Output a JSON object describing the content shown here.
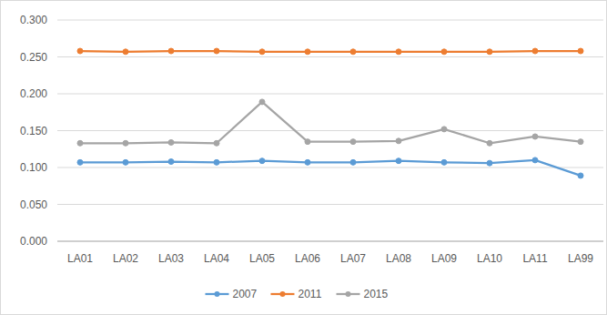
{
  "chart_data": {
    "type": "line",
    "categories": [
      "LA01",
      "LA02",
      "LA03",
      "LA04",
      "LA05",
      "LA06",
      "LA07",
      "LA08",
      "LA09",
      "LA10",
      "LA11",
      "LA99"
    ],
    "series": [
      {
        "name": "2007",
        "color": "#5b9bd5",
        "marker": "circle",
        "values": [
          0.107,
          0.107,
          0.108,
          0.107,
          0.109,
          0.107,
          0.107,
          0.109,
          0.107,
          0.106,
          0.11,
          0.089
        ]
      },
      {
        "name": "2011",
        "color": "#ed7d31",
        "marker": "circle",
        "values": [
          0.258,
          0.257,
          0.258,
          0.258,
          0.257,
          0.257,
          0.257,
          0.257,
          0.257,
          0.257,
          0.258,
          0.258
        ]
      },
      {
        "name": "2015",
        "color": "#a5a5a5",
        "marker": "circle",
        "values": [
          0.133,
          0.133,
          0.134,
          0.133,
          0.189,
          0.135,
          0.135,
          0.136,
          0.152,
          0.133,
          0.142,
          0.135
        ]
      }
    ],
    "ylim": [
      0,
      0.3
    ],
    "yticks": [
      {
        "value": 0,
        "label": "0.000"
      },
      {
        "value": 0.05,
        "label": "0.050"
      },
      {
        "value": 0.1,
        "label": "0.100"
      },
      {
        "value": 0.15,
        "label": "0.150"
      },
      {
        "value": 0.2,
        "label": "0.200"
      },
      {
        "value": 0.25,
        "label": "0.250"
      },
      {
        "value": 0.3,
        "label": "0.300"
      }
    ],
    "grid": true,
    "legend": "bottom"
  }
}
